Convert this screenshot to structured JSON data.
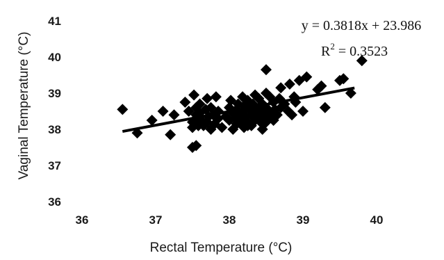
{
  "chart_data": {
    "type": "scatter",
    "xlabel": "Rectal Temperature (°C)",
    "ylabel": "Vaginal Temperature (°C)",
    "xlim": [
      36,
      40
    ],
    "ylim": [
      36,
      41
    ],
    "x_ticks": [
      "36",
      "37",
      "38",
      "39",
      "40"
    ],
    "y_ticks": [
      "36",
      "37",
      "38",
      "39",
      "40",
      "41"
    ],
    "grid": false,
    "legend": "none",
    "marker": "diamond",
    "marker_color": "#000000",
    "trendline": {
      "type": "linear",
      "slope": 0.3818,
      "intercept": 23.986,
      "x_range": [
        36.55,
        39.7
      ]
    },
    "annotations": {
      "equation": "y = 0.3818x + 23.986",
      "r2_prefix": "R",
      "r2_exponent": "2",
      "r2_value": " = 0.3523"
    },
    "series": [
      {
        "x": [
          36.55,
          36.75,
          36.95,
          37.1,
          37.2,
          37.25,
          37.4,
          37.45,
          37.5,
          37.5,
          37.52,
          37.55,
          37.55,
          37.55,
          37.58,
          37.6,
          37.6,
          37.62,
          37.65,
          37.68,
          37.7,
          37.7,
          37.72,
          37.75,
          37.75,
          37.78,
          37.8,
          37.82,
          37.85,
          37.85,
          37.9,
          37.95,
          38.0,
          38.0,
          38.02,
          38.05,
          38.05,
          38.08,
          38.1,
          38.1,
          38.12,
          38.15,
          38.15,
          38.18,
          38.2,
          38.2,
          38.2,
          38.22,
          38.25,
          38.25,
          38.28,
          38.3,
          38.3,
          38.32,
          38.35,
          38.35,
          38.38,
          38.4,
          38.4,
          38.42,
          38.45,
          38.45,
          38.48,
          38.5,
          38.5,
          38.5,
          38.52,
          38.55,
          38.55,
          38.58,
          38.6,
          38.6,
          38.62,
          38.65,
          38.68,
          38.7,
          38.7,
          38.75,
          38.8,
          38.82,
          38.85,
          38.88,
          38.9,
          38.95,
          39.0,
          39.05,
          39.2,
          39.25,
          39.3,
          39.5,
          39.55,
          39.65,
          39.8,
          38.5,
          38.45,
          38.25,
          38.35,
          37.5,
          37.55,
          38.6
        ],
        "y": [
          38.55,
          37.9,
          38.25,
          38.5,
          37.85,
          38.4,
          38.75,
          38.5,
          37.5,
          38.2,
          38.95,
          37.55,
          38.6,
          38.3,
          38.1,
          38.45,
          38.7,
          38.25,
          38.1,
          38.55,
          38.2,
          38.85,
          38.35,
          38.6,
          38.0,
          38.4,
          38.15,
          38.9,
          38.3,
          38.5,
          38.05,
          38.35,
          38.25,
          38.6,
          38.8,
          38.0,
          38.45,
          38.3,
          38.55,
          38.15,
          38.7,
          38.4,
          38.2,
          38.9,
          38.05,
          38.5,
          38.65,
          38.35,
          38.8,
          38.2,
          38.55,
          38.4,
          38.1,
          38.7,
          38.25,
          38.6,
          38.45,
          38.3,
          38.85,
          38.55,
          38.15,
          38.7,
          38.4,
          38.2,
          38.6,
          39.0,
          38.5,
          38.35,
          38.9,
          38.45,
          38.25,
          38.75,
          38.55,
          38.4,
          38.85,
          38.6,
          39.15,
          38.7,
          38.5,
          39.25,
          38.4,
          38.9,
          38.75,
          39.35,
          38.5,
          39.45,
          39.1,
          39.2,
          38.6,
          39.35,
          39.4,
          39.0,
          39.9,
          39.65,
          38.0,
          38.1,
          38.95,
          38.05,
          38.4,
          38.25
        ]
      }
    ]
  }
}
